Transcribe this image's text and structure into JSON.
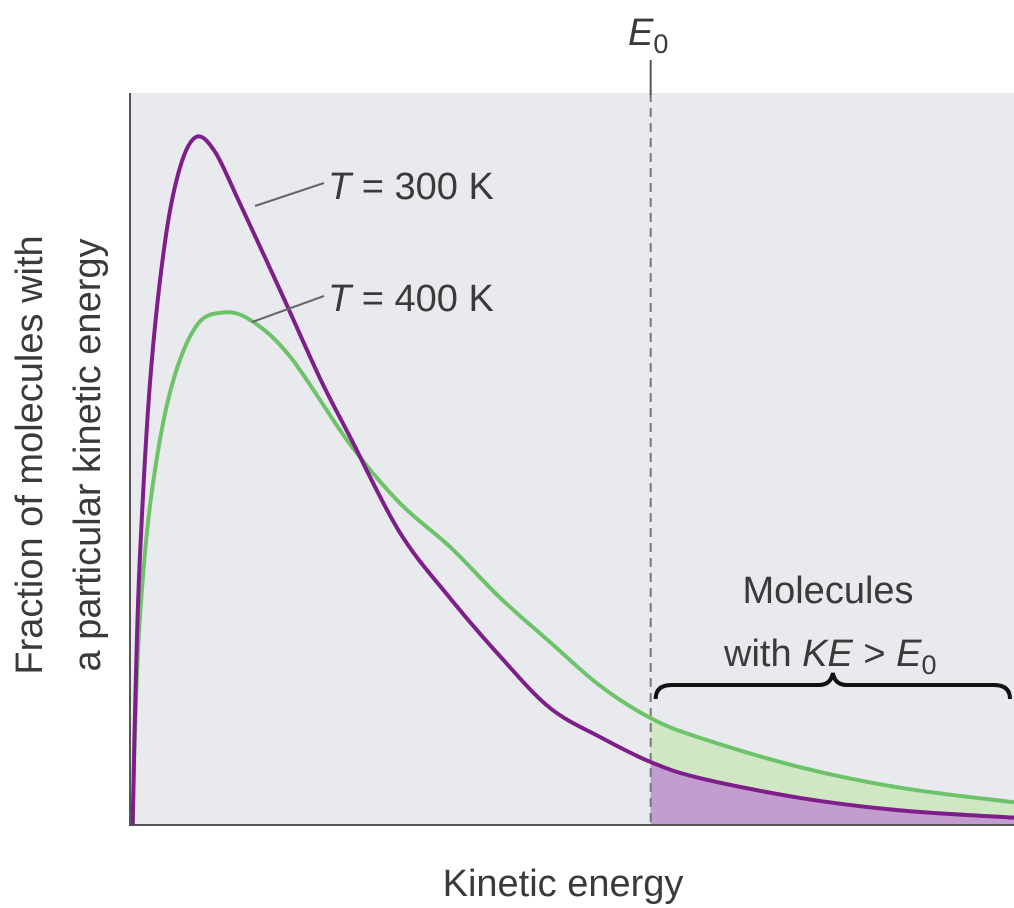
{
  "chart_data": {
    "type": "line",
    "title": "",
    "xlabel": "Kinetic energy",
    "ylabel_lines": [
      "Fraction of molecules with",
      "a particular kinetic energy"
    ],
    "xlim": [
      0,
      10
    ],
    "ylim": [
      0,
      1
    ],
    "grid": false,
    "colors": {
      "background": "#e9eaed",
      "t300": "#7d1e8a",
      "t400": "#6dc36a",
      "t300_fill": "#c39dd0",
      "t400_fill": "#cfe7c2",
      "axis": "#555555"
    },
    "series": [
      {
        "name": "T = 300 K",
        "italic": "T",
        "rest": " = 300 K",
        "x": [
          0.03,
          0.06,
          0.11,
          0.23,
          0.4,
          0.57,
          0.75,
          0.96,
          1.24,
          1.7,
          2.15,
          2.49,
          3.05,
          3.62,
          4.19,
          4.75,
          5.32,
          5.89,
          6.45,
          7.58,
          8.71,
          10
        ],
        "y": [
          0,
          0.17,
          0.36,
          0.61,
          0.8,
          0.9,
          0.94,
          0.92,
          0.85,
          0.73,
          0.61,
          0.53,
          0.4,
          0.31,
          0.23,
          0.16,
          0.12,
          0.086,
          0.064,
          0.037,
          0.02,
          0.01
        ]
      },
      {
        "name": "T = 400 K",
        "italic": "T",
        "rest": " = 400 K",
        "x": [
          0.03,
          0.06,
          0.11,
          0.23,
          0.45,
          0.74,
          1.04,
          1.36,
          1.81,
          2.49,
          3.05,
          3.62,
          4.19,
          4.75,
          5.32,
          5.89,
          6.45,
          7.58,
          8.71,
          10
        ],
        "y": [
          0,
          0.14,
          0.28,
          0.44,
          0.59,
          0.68,
          0.7,
          0.69,
          0.64,
          0.52,
          0.44,
          0.38,
          0.31,
          0.25,
          0.19,
          0.146,
          0.119,
          0.079,
          0.051,
          0.031
        ]
      }
    ],
    "threshold": {
      "x": 5.89,
      "label_main": "E",
      "label_sub": "0"
    },
    "annotation": {
      "line1": "Molecules",
      "line2_prefix": "with ",
      "line2_italic": "KE",
      "line2_mid": " > ",
      "line2_e": "E",
      "line2_sub": "0"
    }
  }
}
